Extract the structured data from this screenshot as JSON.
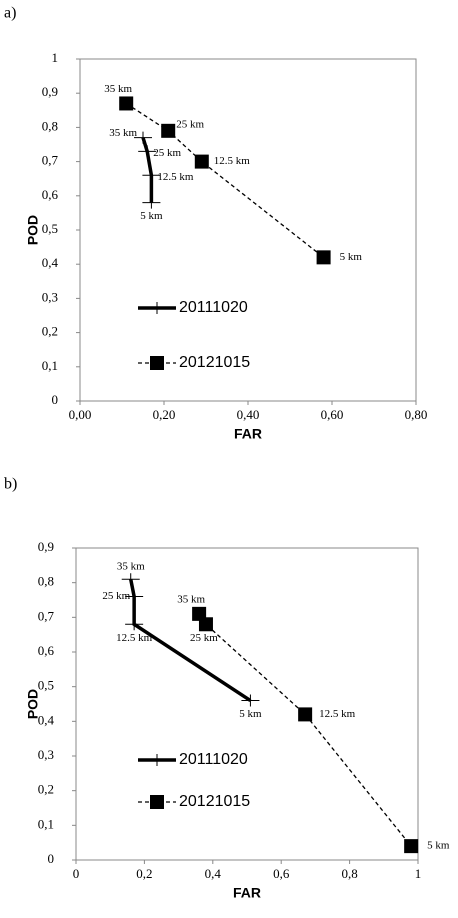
{
  "chart_data": [
    {
      "type": "line",
      "panel_label": "a)",
      "xlabel": "FAR",
      "ylabel": "POD",
      "xlim": [
        0,
        0.8
      ],
      "xticks": [
        {
          "value": 0,
          "label": "0,00"
        },
        {
          "value": 0.2,
          "label": "0,20"
        },
        {
          "value": 0.4,
          "label": "0,40"
        },
        {
          "value": 0.6,
          "label": "0,60"
        },
        {
          "value": 0.8,
          "label": "0,80"
        }
      ],
      "ylim": [
        0,
        1
      ],
      "yticks": [
        0,
        {
          "value": 0.1,
          "label": "0,1"
        },
        {
          "value": 0.2,
          "label": "0,2"
        },
        {
          "value": 0.3,
          "label": "0,3"
        },
        {
          "value": 0.4,
          "label": "0,4"
        },
        {
          "value": 0.5,
          "label": "0,5"
        },
        {
          "value": 0.6,
          "label": "0,6"
        },
        {
          "value": 0.7,
          "label": "0,7"
        },
        {
          "value": 0.8,
          "label": "0,8"
        },
        {
          "value": 0.9,
          "label": "0,9"
        },
        1
      ],
      "series": [
        {
          "name": "20111020",
          "color": "#000000",
          "line_style": "solid",
          "marker": "plus",
          "x": [
            0.15,
            0.16,
            0.17,
            0.17
          ],
          "values": [
            0.77,
            0.73,
            0.66,
            0.58
          ],
          "point_labels": [
            "35 km",
            "25 km",
            "12.5 km",
            "5 km"
          ]
        },
        {
          "name": "20121015",
          "color": "#000000",
          "line_style": "dashed",
          "marker": "square",
          "x": [
            0.11,
            0.21,
            0.29,
            0.58
          ],
          "values": [
            0.87,
            0.79,
            0.7,
            0.42
          ],
          "point_labels": [
            "35 km",
            "25 km",
            "12.5 km",
            "5 km"
          ]
        }
      ]
    },
    {
      "type": "line",
      "panel_label": "b)",
      "xlabel": "FAR",
      "ylabel": "POD",
      "xlim": [
        0,
        1
      ],
      "xticks": [
        0,
        {
          "value": 0.2,
          "label": "0,2"
        },
        {
          "value": 0.4,
          "label": "0,4"
        },
        {
          "value": 0.6,
          "label": "0,6"
        },
        {
          "value": 0.8,
          "label": "0,8"
        },
        1
      ],
      "ylim": [
        0,
        0.9
      ],
      "yticks": [
        0,
        {
          "value": 0.1,
          "label": "0,1"
        },
        {
          "value": 0.2,
          "label": "0,2"
        },
        {
          "value": 0.3,
          "label": "0,3"
        },
        {
          "value": 0.4,
          "label": "0,4"
        },
        {
          "value": 0.5,
          "label": "0,5"
        },
        {
          "value": 0.6,
          "label": "0,6"
        },
        {
          "value": 0.7,
          "label": "0,7"
        },
        {
          "value": 0.8,
          "label": "0,8"
        },
        {
          "value": 0.9,
          "label": "0,9"
        }
      ],
      "series": [
        {
          "name": "20111020",
          "color": "#000000",
          "line_style": "solid",
          "marker": "plus",
          "x": [
            0.16,
            0.17,
            0.17,
            0.51
          ],
          "values": [
            0.81,
            0.76,
            0.68,
            0.46
          ],
          "point_labels": [
            "35 km",
            "25 km",
            "12.5 km",
            "5 km"
          ]
        },
        {
          "name": "20121015",
          "color": "#000000",
          "line_style": "dashed",
          "marker": "square",
          "x": [
            0.36,
            0.38,
            0.67,
            0.98
          ],
          "values": [
            0.71,
            0.68,
            0.42,
            0.04
          ],
          "point_labels": [
            "35 km",
            "25 km",
            "12.5 km",
            "5 km"
          ]
        }
      ]
    }
  ]
}
